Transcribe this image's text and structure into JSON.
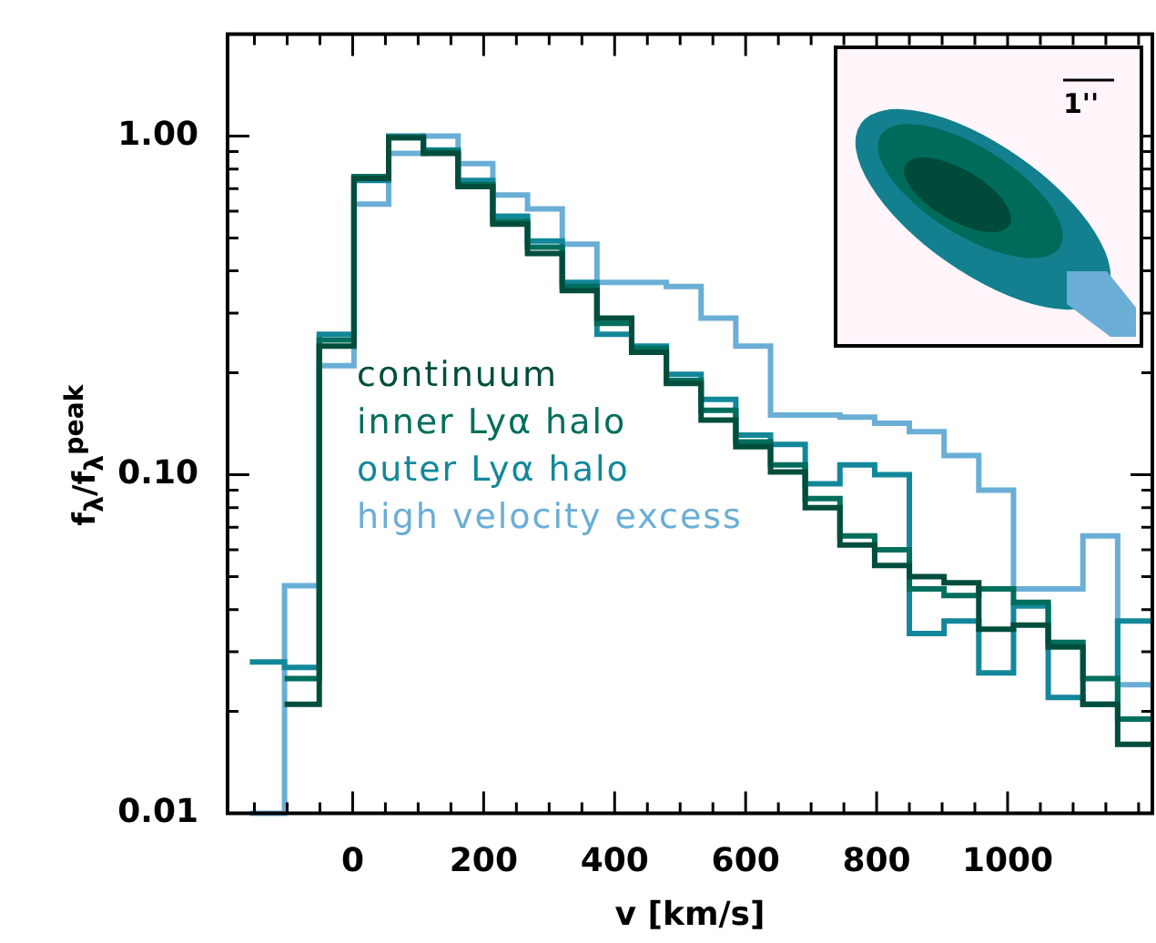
{
  "chart_data": {
    "type": "histogram",
    "xlabel": "v [km/s]",
    "ylabel": "f$_{λ}$/f$_{λ}$$^{peak}$",
    "bins": [
      -157,
      -104,
      -51,
      2,
      55,
      108,
      161,
      214,
      267,
      320,
      373,
      426,
      479,
      532,
      585,
      638,
      691,
      744,
      797,
      850,
      903,
      956,
      1009,
      1062,
      1115,
      1168,
      1221
    ],
    "series": [
      {
        "name": "continuum",
        "color": "#004d3c",
        "bins": [
          -104,
          -51,
          2,
          55,
          108,
          161,
          214,
          267,
          320,
          373,
          426,
          479,
          532,
          585,
          638,
          691,
          744,
          797,
          850,
          903,
          956,
          1009,
          1062,
          1115,
          1168,
          1221
        ],
        "values": [
          0.021,
          0.24,
          0.75,
          0.99,
          0.89,
          0.71,
          0.55,
          0.45,
          0.35,
          0.29,
          0.23,
          0.186,
          0.145,
          0.121,
          0.102,
          0.08,
          0.062,
          0.054,
          0.05,
          0.048,
          0.035,
          0.036,
          0.031,
          0.021,
          0.016
        ]
      },
      {
        "name": "inner Lyα halo",
        "color": "#006e5c",
        "bins": [
          -104,
          -51,
          2,
          55,
          108,
          161,
          214,
          267,
          320,
          373,
          426,
          479,
          532,
          585,
          638,
          691,
          744,
          797,
          850,
          903,
          956,
          1009,
          1062,
          1115,
          1168,
          1221
        ],
        "values": [
          0.025,
          0.25,
          0.76,
          0.99,
          0.9,
          0.72,
          0.56,
          0.47,
          0.36,
          0.28,
          0.236,
          0.19,
          0.155,
          0.125,
          0.107,
          0.085,
          0.066,
          0.06,
          0.046,
          0.044,
          0.046,
          0.042,
          0.032,
          0.025,
          0.019
        ]
      },
      {
        "name": "outer Lyα halo",
        "color": "#13879a",
        "values": [
          0.028,
          0.027,
          0.26,
          0.74,
          1.0,
          0.91,
          0.74,
          0.58,
          0.49,
          0.37,
          0.26,
          0.24,
          0.198,
          0.167,
          0.131,
          0.123,
          0.094,
          0.107,
          0.1,
          0.034,
          0.037,
          0.026,
          0.041,
          0.022,
          0.021,
          0.037
        ]
      },
      {
        "name": "high velocity excess",
        "color": "#6aaed6",
        "values": [
          0.01,
          0.047,
          0.21,
          0.63,
          0.89,
          1.0,
          0.83,
          0.67,
          0.61,
          0.48,
          0.37,
          0.37,
          0.36,
          0.29,
          0.24,
          0.15,
          0.15,
          0.148,
          0.142,
          0.134,
          0.114,
          0.09,
          0.046,
          0.046,
          0.066,
          0.024
        ]
      }
    ],
    "xlim": [
      -191,
      1221
    ],
    "ylim": [
      0.01,
      2.0
    ],
    "xticks": [
      {
        "value": -150,
        "label": null
      },
      {
        "value": -100,
        "label": null
      },
      {
        "value": -50,
        "label": null
      },
      0,
      {
        "value": 50,
        "label": null
      },
      {
        "value": 100,
        "label": null
      },
      {
        "value": 150,
        "label": null
      },
      200,
      {
        "value": 250,
        "label": null
      },
      {
        "value": 300,
        "label": null
      },
      {
        "value": 350,
        "label": null
      },
      400,
      {
        "value": 450,
        "label": null
      },
      {
        "value": 500,
        "label": null
      },
      {
        "value": 550,
        "label": null
      },
      600,
      {
        "value": 650,
        "label": null
      },
      {
        "value": 700,
        "label": null
      },
      {
        "value": 750,
        "label": null
      },
      800,
      {
        "value": 850,
        "label": null
      },
      {
        "value": 900,
        "label": null
      },
      {
        "value": 950,
        "label": null
      },
      1000,
      {
        "value": 1050,
        "label": null
      },
      {
        "value": 1100,
        "label": null
      },
      {
        "value": 1150,
        "label": null
      },
      {
        "value": 1200,
        "label": null
      }
    ],
    "yticks": [
      {
        "value": 0.01,
        "label": "0.01"
      },
      {
        "value": 0.02,
        "label": null
      },
      {
        "value": 0.03,
        "label": null
      },
      {
        "value": 0.04,
        "label": null
      },
      {
        "value": 0.05,
        "label": null
      },
      {
        "value": 0.06,
        "label": null
      },
      {
        "value": 0.07,
        "label": null
      },
      {
        "value": 0.08,
        "label": null
      },
      {
        "value": 0.09,
        "label": null
      },
      {
        "value": 0.1,
        "label": "0.10"
      },
      {
        "value": 0.2,
        "label": null
      },
      {
        "value": 0.3,
        "label": null
      },
      {
        "value": 0.4,
        "label": null
      },
      {
        "value": 0.5,
        "label": null
      },
      {
        "value": 0.6,
        "label": null
      },
      {
        "value": 0.7,
        "label": null
      },
      {
        "value": 0.8,
        "label": null
      },
      {
        "value": 0.9,
        "label": null
      },
      {
        "value": 1,
        "label": "1.00"
      },
      {
        "value": 2,
        "label": null
      }
    ],
    "log": "y",
    "grid": false,
    "legend": "left",
    "annotations": [
      "1''"
    ]
  }
}
